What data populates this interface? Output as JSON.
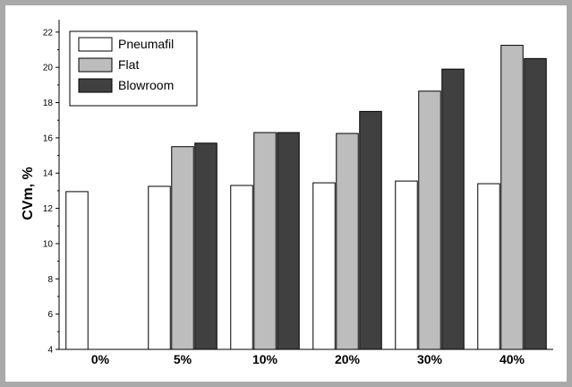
{
  "chart_data": {
    "type": "bar",
    "title": "",
    "xlabel": "",
    "ylabel": "CVm, %",
    "ylim": [
      4,
      22.5
    ],
    "yticks": [
      4,
      6,
      8,
      10,
      12,
      14,
      16,
      18,
      20,
      22
    ],
    "categories": [
      "0%",
      "5%",
      "10%",
      "20%",
      "30%",
      "40%"
    ],
    "grid": false,
    "legend_position": "top-left",
    "series": [
      {
        "name": "Pneumafil",
        "color": "#ffffff",
        "values": [
          12.95,
          13.25,
          13.3,
          13.45,
          13.55,
          13.4
        ]
      },
      {
        "name": "Flat",
        "color": "#bdbdbd",
        "values": [
          null,
          15.5,
          16.3,
          16.25,
          18.65,
          21.25
        ]
      },
      {
        "name": "Blowroom",
        "color": "#404040",
        "values": [
          null,
          15.7,
          16.3,
          17.5,
          19.9,
          20.5
        ]
      }
    ]
  }
}
